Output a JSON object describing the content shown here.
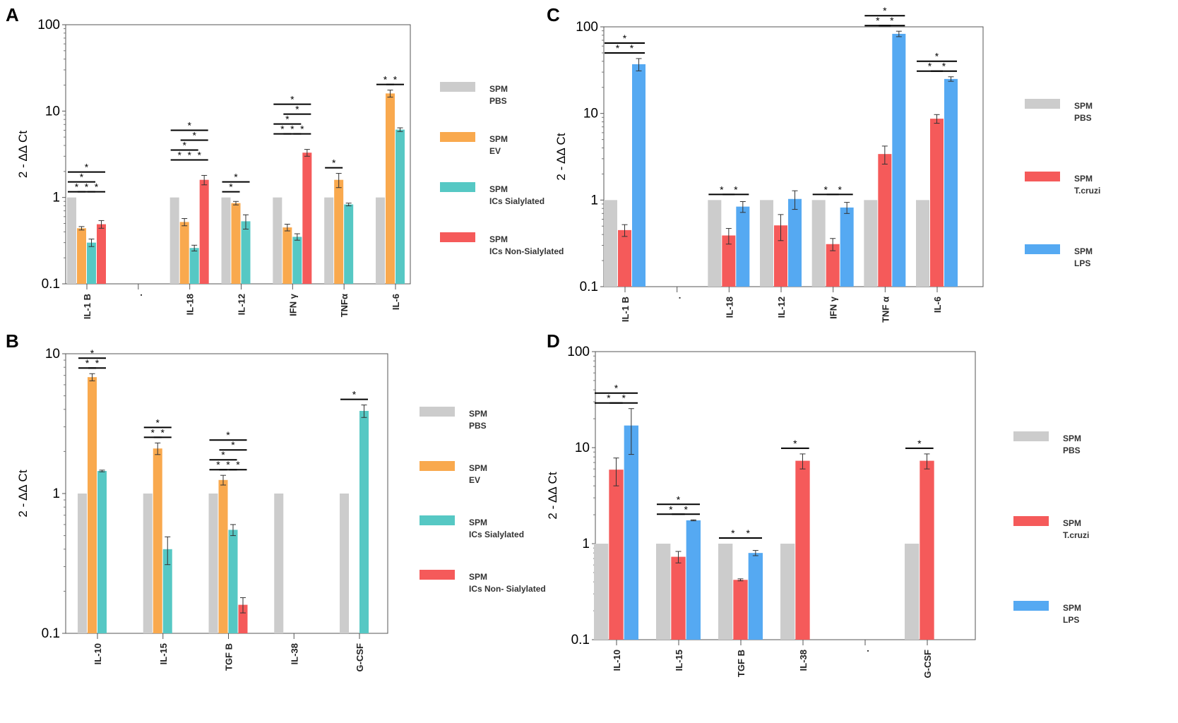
{
  "chart_data": [
    {
      "panel": "A",
      "type": "bar",
      "scale": "log",
      "ylim": [
        0.1,
        100
      ],
      "yticks": [
        "0.1",
        "1",
        "10",
        "100"
      ],
      "ylabel": "2 - ΔΔ Ct",
      "categories": [
        "IL-1 B",
        ".",
        "IL-18",
        "IL-12",
        "IFN γ",
        "TNFα",
        "IL-6"
      ],
      "series": [
        {
          "name": "SPM PBS",
          "color": "#cccccc",
          "values": [
            1,
            null,
            1,
            1,
            1,
            1,
            1
          ],
          "errors": [
            0,
            0,
            0,
            0,
            0,
            0,
            0
          ]
        },
        {
          "name": "SPM EV",
          "color": "#f9a94e",
          "values": [
            0.44,
            null,
            0.52,
            0.86,
            0.45,
            1.6,
            16
          ],
          "errors": [
            0.02,
            0,
            0.05,
            0.04,
            0.04,
            0.3,
            1.5
          ]
        },
        {
          "name": "SPM ICs Sialylated",
          "color": "#56c8c4",
          "values": [
            0.3,
            null,
            0.26,
            0.53,
            0.35,
            0.83,
            6.1
          ],
          "errors": [
            0.03,
            0,
            0.02,
            0.1,
            0.03,
            0.03,
            0.3
          ]
        },
        {
          "name": "SPM ICs Non-Sialylated",
          "color": "#f55a5a",
          "values": [
            0.49,
            null,
            1.6,
            null,
            3.3,
            null,
            null
          ],
          "errors": [
            0.05,
            0,
            0.2,
            0,
            0.3,
            0,
            0
          ]
        }
      ],
      "legend": [
        {
          "line1": "SPM",
          "line2": "PBS",
          "color": "#cccccc"
        },
        {
          "line1": "SPM",
          "line2": "EV",
          "color": "#f9a94e"
        },
        {
          "line1": "SPM",
          "line2": "ICs Sialylated",
          "color": "#56c8c4"
        },
        {
          "line1": "SPM",
          "line2": "ICs Non-Sialylated",
          "color": "#f55a5a"
        }
      ],
      "significance": [
        {
          "cat": 0,
          "from": 0,
          "to": 3,
          "level": 3
        },
        {
          "cat": 0,
          "from": 0,
          "to": 2,
          "level": 2
        },
        {
          "cat": 0,
          "from": 0,
          "to": 1,
          "level": 1
        },
        {
          "cat": 0,
          "from": 1,
          "to": 2,
          "level": 1
        },
        {
          "cat": 0,
          "from": 2,
          "to": 3,
          "level": 1
        },
        {
          "cat": 2,
          "from": 0,
          "to": 3,
          "level": 5
        },
        {
          "cat": 2,
          "from": 1,
          "to": 3,
          "level": 4
        },
        {
          "cat": 2,
          "from": 0,
          "to": 2,
          "level": 3
        },
        {
          "cat": 2,
          "from": 0,
          "to": 1,
          "level": 2
        },
        {
          "cat": 2,
          "from": 1,
          "to": 2,
          "level": 2
        },
        {
          "cat": 2,
          "from": 2,
          "to": 3,
          "level": 2
        },
        {
          "cat": 3,
          "from": 0,
          "to": 2,
          "level": 2
        },
        {
          "cat": 3,
          "from": 0,
          "to": 1,
          "level": 1
        },
        {
          "cat": 4,
          "from": 0,
          "to": 3,
          "level": 5
        },
        {
          "cat": 4,
          "from": 1,
          "to": 3,
          "level": 4
        },
        {
          "cat": 4,
          "from": 0,
          "to": 2,
          "level": 3
        },
        {
          "cat": 4,
          "from": 0,
          "to": 1,
          "level": 2
        },
        {
          "cat": 4,
          "from": 1,
          "to": 2,
          "level": 2
        },
        {
          "cat": 4,
          "from": 2,
          "to": 3,
          "level": 2
        },
        {
          "cat": 5,
          "from": 0,
          "to": 1,
          "level": 1
        },
        {
          "cat": 6,
          "from": 0,
          "to": 1,
          "level": 1
        },
        {
          "cat": 6,
          "from": 1,
          "to": 2,
          "level": 1
        }
      ]
    },
    {
      "panel": "B",
      "type": "bar",
      "scale": "log",
      "ylim": [
        0.1,
        10
      ],
      "yticks": [
        "0.1",
        "1",
        "10"
      ],
      "ylabel": "2 - ΔΔ Ct",
      "categories": [
        "IL-10",
        "IL-15",
        "TGF B",
        "IL-38",
        "G-CSF"
      ],
      "series": [
        {
          "name": "SPM PBS",
          "color": "#cccccc",
          "values": [
            1,
            1,
            1,
            1,
            1
          ],
          "errors": [
            0,
            0,
            0,
            0,
            0
          ]
        },
        {
          "name": "SPM EV",
          "color": "#f9a94e",
          "values": [
            6.8,
            2.1,
            1.25,
            null,
            null
          ],
          "errors": [
            0.4,
            0.2,
            0.1,
            0,
            0
          ]
        },
        {
          "name": "SPM ICs Sialylated",
          "color": "#56c8c4",
          "values": [
            1.45,
            0.4,
            0.55,
            null,
            3.9
          ],
          "errors": [
            0.02,
            0.09,
            0.05,
            0,
            0.4
          ]
        },
        {
          "name": "SPM ICs Non-Sialylated",
          "color": "#f55a5a",
          "values": [
            null,
            null,
            0.16,
            null,
            null
          ],
          "errors": [
            0,
            0,
            0.02,
            0,
            0
          ]
        }
      ],
      "legend": [
        {
          "line1": "SPM",
          "line2": "PBS",
          "color": "#cccccc"
        },
        {
          "line1": "SPM",
          "line2": "EV",
          "color": "#f9a94e"
        },
        {
          "line1": "SPM",
          "line2": "ICs Sialylated",
          "color": "#56c8c4"
        },
        {
          "line1": "SPM",
          "line2": "ICs Non- Sialylated",
          "color": "#f55a5a"
        }
      ],
      "significance": [
        {
          "cat": 0,
          "from": 0,
          "to": 2,
          "level": 2
        },
        {
          "cat": 0,
          "from": 0,
          "to": 1,
          "level": 1
        },
        {
          "cat": 0,
          "from": 1,
          "to": 2,
          "level": 1
        },
        {
          "cat": 1,
          "from": 0,
          "to": 2,
          "level": 2
        },
        {
          "cat": 1,
          "from": 0,
          "to": 1,
          "level": 1
        },
        {
          "cat": 1,
          "from": 1,
          "to": 2,
          "level": 1
        },
        {
          "cat": 2,
          "from": 0,
          "to": 3,
          "level": 4
        },
        {
          "cat": 2,
          "from": 1,
          "to": 3,
          "level": 3
        },
        {
          "cat": 2,
          "from": 0,
          "to": 2,
          "level": 2
        },
        {
          "cat": 2,
          "from": 0,
          "to": 1,
          "level": 1
        },
        {
          "cat": 2,
          "from": 1,
          "to": 2,
          "level": 1
        },
        {
          "cat": 2,
          "from": 2,
          "to": 3,
          "level": 1
        },
        {
          "cat": 4,
          "from": 0,
          "to": 2,
          "level": 1
        }
      ]
    },
    {
      "panel": "C",
      "type": "bar",
      "scale": "log",
      "ylim": [
        0.1,
        100
      ],
      "yticks": [
        "0.1",
        "1",
        "10",
        "100"
      ],
      "ylabel": "2 - ΔΔ Ct",
      "categories": [
        "IL-1 B",
        ".",
        "IL-18",
        "IL-12",
        "IFN γ",
        "TNF α",
        "IL-6"
      ],
      "series": [
        {
          "name": "SPM PBS",
          "color": "#cccccc",
          "values": [
            1,
            null,
            1,
            1,
            1,
            1,
            1
          ],
          "errors": [
            0,
            0,
            0,
            0,
            0,
            0,
            0
          ]
        },
        {
          "name": "SPM T.cruzi",
          "color": "#f55a5a",
          "values": [
            0.45,
            null,
            0.39,
            0.51,
            0.31,
            3.4,
            8.7
          ],
          "errors": [
            0.07,
            0,
            0.08,
            0.17,
            0.05,
            0.8,
            1.0
          ]
        },
        {
          "name": "SPM LPS",
          "color": "#55a9f2",
          "values": [
            37,
            null,
            0.84,
            1.03,
            0.82,
            83,
            25
          ],
          "errors": [
            6,
            0,
            0.12,
            0.25,
            0.12,
            6,
            1.5
          ]
        }
      ],
      "legend": [
        {
          "line1": "SPM",
          "line2": "PBS",
          "color": "#cccccc"
        },
        {
          "line1": "SPM",
          "line2": "T.cruzi",
          "color": "#f55a5a"
        },
        {
          "line1": "SPM",
          "line2": "LPS",
          "color": "#55a9f2"
        }
      ],
      "significance": [
        {
          "cat": 0,
          "from": 0,
          "to": 2,
          "level": 2
        },
        {
          "cat": 0,
          "from": 0,
          "to": 1,
          "level": 1
        },
        {
          "cat": 0,
          "from": 1,
          "to": 2,
          "level": 1
        },
        {
          "cat": 2,
          "from": 0,
          "to": 1,
          "level": 1
        },
        {
          "cat": 2,
          "from": 1,
          "to": 2,
          "level": 1
        },
        {
          "cat": 4,
          "from": 0,
          "to": 1,
          "level": 1
        },
        {
          "cat": 4,
          "from": 1,
          "to": 2,
          "level": 1
        },
        {
          "cat": 5,
          "from": 0,
          "to": 2,
          "level": 2
        },
        {
          "cat": 5,
          "from": 0,
          "to": 1,
          "level": 1
        },
        {
          "cat": 5,
          "from": 1,
          "to": 2,
          "level": 1
        },
        {
          "cat": 6,
          "from": 0,
          "to": 2,
          "level": 2
        },
        {
          "cat": 6,
          "from": 0,
          "to": 1,
          "level": 1
        },
        {
          "cat": 6,
          "from": 1,
          "to": 2,
          "level": 1
        }
      ]
    },
    {
      "panel": "D",
      "type": "bar",
      "scale": "log",
      "ylim": [
        0.1,
        100
      ],
      "yticks": [
        "0.1",
        "1",
        "10",
        "100"
      ],
      "ylabel": "2 - ΔΔ Ct",
      "categories": [
        "IL-10",
        "IL-15",
        "TGF B",
        "IL-38",
        ".",
        "G-CSF"
      ],
      "series": [
        {
          "name": "SPM PBS",
          "color": "#cccccc",
          "values": [
            1,
            1,
            1,
            1,
            null,
            1
          ],
          "errors": [
            0,
            0,
            0,
            0,
            0,
            0
          ]
        },
        {
          "name": "SPM T.cruzi",
          "color": "#f55a5a",
          "values": [
            5.9,
            0.73,
            0.42,
            7.3,
            null,
            7.3
          ],
          "errors": [
            1.9,
            0.1,
            0.01,
            1.3,
            0,
            1.3
          ]
        },
        {
          "name": "SPM LPS",
          "color": "#55a9f2",
          "values": [
            17,
            1.75,
            0.8,
            null,
            null,
            null
          ],
          "errors": [
            8.5,
            0.02,
            0.05,
            0,
            0,
            0
          ]
        }
      ],
      "legend": [
        {
          "line1": "SPM",
          "line2": "PBS",
          "color": "#cccccc"
        },
        {
          "line1": "SPM",
          "line2": "T.cruzi",
          "color": "#f55a5a"
        },
        {
          "line1": "SPM",
          "line2": "LPS",
          "color": "#55a9f2"
        }
      ],
      "significance": [
        {
          "cat": 0,
          "from": 0,
          "to": 2,
          "level": 2
        },
        {
          "cat": 0,
          "from": 0,
          "to": 1,
          "level": 1
        },
        {
          "cat": 0,
          "from": 1,
          "to": 2,
          "level": 1
        },
        {
          "cat": 1,
          "from": 0,
          "to": 2,
          "level": 2
        },
        {
          "cat": 1,
          "from": 0,
          "to": 1,
          "level": 1
        },
        {
          "cat": 1,
          "from": 1,
          "to": 2,
          "level": 1
        },
        {
          "cat": 2,
          "from": 0,
          "to": 1,
          "level": 1
        },
        {
          "cat": 2,
          "from": 1,
          "to": 2,
          "level": 1
        },
        {
          "cat": 3,
          "from": 0,
          "to": 1,
          "level": 1
        },
        {
          "cat": 5,
          "from": 0,
          "to": 1,
          "level": 1
        }
      ]
    }
  ],
  "star_symbol": "*"
}
